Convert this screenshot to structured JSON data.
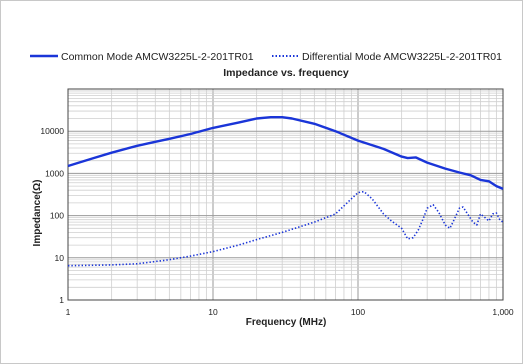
{
  "chart_data": {
    "type": "line",
    "title": "Impedance vs. frequency",
    "xlabel": "Frequency (MHz)",
    "ylabel": "Impedance(Ω)",
    "x_scale": "log",
    "y_scale": "log",
    "xlim": [
      1,
      1000
    ],
    "ylim": [
      1,
      100000
    ],
    "grid": true,
    "legend_position": "top",
    "x_ticks": [
      "1",
      "10",
      "100",
      "1,000"
    ],
    "y_ticks": [
      "1",
      "10",
      "100",
      "1000",
      "10000"
    ],
    "series": [
      {
        "name": "Common Mode  AMCW3225L-2-201TR01",
        "style": "solid",
        "color": "#1a35d8",
        "points": [
          [
            1,
            1500
          ],
          [
            1.5,
            2300
          ],
          [
            2,
            3100
          ],
          [
            3,
            4500
          ],
          [
            4,
            5600
          ],
          [
            5,
            6600
          ],
          [
            7,
            8600
          ],
          [
            10,
            12000
          ],
          [
            15,
            16000
          ],
          [
            20,
            20000
          ],
          [
            25,
            21500
          ],
          [
            30,
            21500
          ],
          [
            35,
            20000
          ],
          [
            50,
            15000
          ],
          [
            70,
            10000
          ],
          [
            100,
            6000
          ],
          [
            150,
            3800
          ],
          [
            200,
            2500
          ],
          [
            220,
            2300
          ],
          [
            250,
            2400
          ],
          [
            300,
            1800
          ],
          [
            400,
            1300
          ],
          [
            500,
            1050
          ],
          [
            600,
            900
          ],
          [
            700,
            700
          ],
          [
            800,
            650
          ],
          [
            900,
            500
          ],
          [
            1000,
            430
          ]
        ]
      },
      {
        "name": "Differential Mode  AMCW3225L-2-201TR01",
        "style": "dotted",
        "color": "#1a35d8",
        "points": [
          [
            1,
            6.5
          ],
          [
            2,
            6.8
          ],
          [
            3,
            7.2
          ],
          [
            5,
            9
          ],
          [
            7,
            11
          ],
          [
            10,
            14
          ],
          [
            15,
            20
          ],
          [
            20,
            27
          ],
          [
            30,
            40
          ],
          [
            50,
            70
          ],
          [
            70,
            110
          ],
          [
            90,
            250
          ],
          [
            100,
            350
          ],
          [
            110,
            370
          ],
          [
            125,
            250
          ],
          [
            150,
            110
          ],
          [
            170,
            75
          ],
          [
            200,
            50
          ],
          [
            220,
            28
          ],
          [
            240,
            30
          ],
          [
            260,
            45
          ],
          [
            280,
            80
          ],
          [
            300,
            150
          ],
          [
            330,
            180
          ],
          [
            360,
            120
          ],
          [
            400,
            60
          ],
          [
            430,
            50
          ],
          [
            460,
            80
          ],
          [
            500,
            150
          ],
          [
            530,
            160
          ],
          [
            570,
            110
          ],
          [
            620,
            70
          ],
          [
            660,
            60
          ],
          [
            700,
            110
          ],
          [
            750,
            90
          ],
          [
            800,
            75
          ],
          [
            850,
            110
          ],
          [
            900,
            115
          ],
          [
            950,
            80
          ],
          [
            1000,
            70
          ]
        ]
      }
    ]
  }
}
